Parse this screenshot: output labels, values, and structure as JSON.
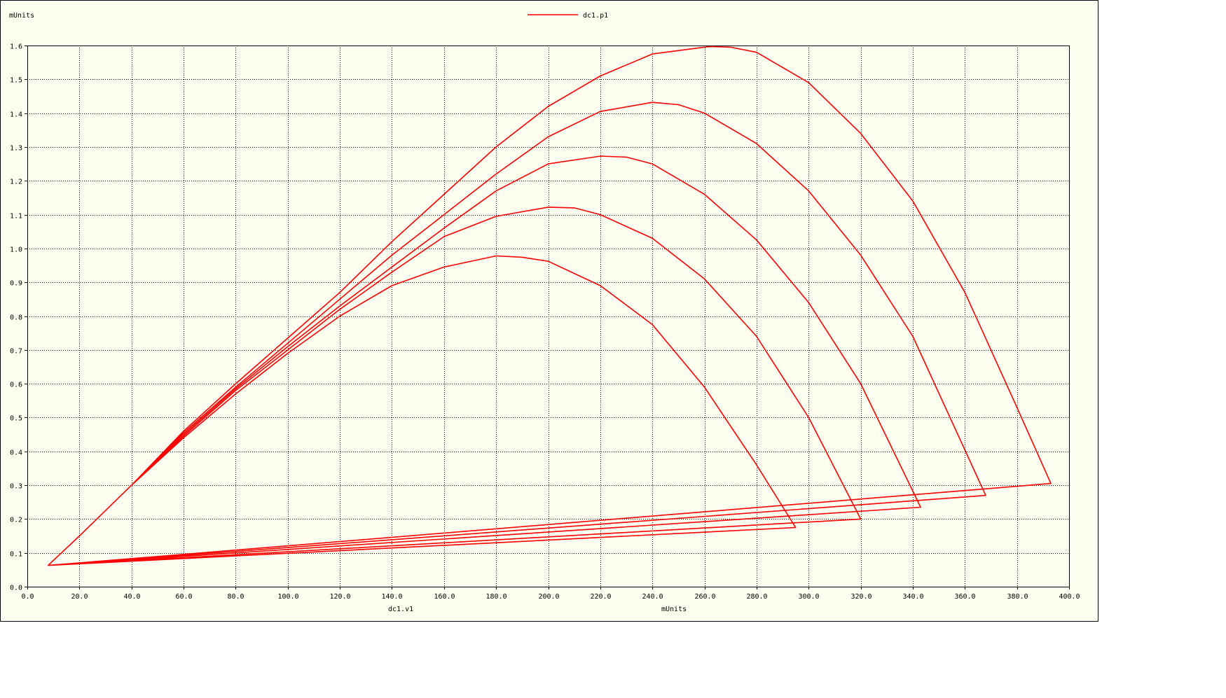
{
  "chart_data": {
    "type": "line",
    "xlabel": "dc1.v1",
    "xunit": "mUnits",
    "ylabel": "mUnits",
    "xlim": [
      0,
      400
    ],
    "ylim": [
      0,
      1.6
    ],
    "x_ticks": [
      "0.0",
      "20.0",
      "40.0",
      "60.0",
      "80.0",
      "100.0",
      "120.0",
      "140.0",
      "160.0",
      "180.0",
      "200.0",
      "220.0",
      "240.0",
      "260.0",
      "280.0",
      "300.0",
      "320.0",
      "340.0",
      "360.0",
      "380.0",
      "400.0"
    ],
    "y_ticks": [
      "0.0",
      "0.1",
      "0.2",
      "0.3",
      "0.4",
      "0.5",
      "0.6",
      "0.7",
      "0.8",
      "0.9",
      "1.0",
      "1.1",
      "1.2",
      "1.3",
      "1.4",
      "1.5",
      "1.6"
    ],
    "grid": true,
    "legend_position": "top-center",
    "series_color": "#ff0000",
    "series": [
      {
        "name": "dc1.p1",
        "x": [
          8,
          20,
          40,
          60,
          80,
          100,
          120,
          140,
          160,
          180,
          190,
          200,
          220,
          240,
          260,
          270,
          280,
          295,
          8,
          20,
          40,
          60,
          80,
          100,
          120,
          140,
          160,
          180,
          200,
          210,
          220,
          240,
          260,
          280,
          300,
          320,
          8,
          20,
          40,
          60,
          80,
          100,
          120,
          140,
          160,
          180,
          200,
          220,
          230,
          240,
          260,
          280,
          300,
          320,
          343,
          8,
          20,
          40,
          60,
          80,
          100,
          120,
          140,
          160,
          180,
          200,
          220,
          240,
          250,
          260,
          280,
          300,
          320,
          340,
          368,
          8,
          20,
          40,
          60,
          80,
          100,
          120,
          140,
          160,
          180,
          200,
          220,
          240,
          262,
          270,
          280,
          300,
          320,
          340,
          360,
          380,
          393,
          8
        ],
        "y": [
          0.063,
          0.15,
          0.3,
          0.44,
          0.57,
          0.69,
          0.8,
          0.89,
          0.945,
          0.978,
          0.974,
          0.962,
          0.89,
          0.775,
          0.59,
          0.475,
          0.36,
          0.175,
          0.063,
          0.15,
          0.3,
          0.445,
          0.58,
          0.7,
          0.82,
          0.93,
          1.035,
          1.095,
          1.122,
          1.12,
          1.1,
          1.03,
          0.91,
          0.74,
          0.5,
          0.2,
          0.063,
          0.15,
          0.3,
          0.45,
          0.585,
          0.71,
          0.83,
          0.945,
          1.06,
          1.17,
          1.25,
          1.273,
          1.27,
          1.25,
          1.16,
          1.025,
          0.84,
          0.6,
          0.235,
          0.063,
          0.15,
          0.3,
          0.455,
          0.59,
          0.72,
          0.85,
          0.98,
          1.1,
          1.22,
          1.33,
          1.405,
          1.432,
          1.425,
          1.4,
          1.31,
          1.17,
          0.98,
          0.74,
          0.27,
          0.063,
          0.15,
          0.3,
          0.46,
          0.6,
          0.735,
          0.87,
          1.02,
          1.16,
          1.3,
          1.42,
          1.51,
          1.575,
          1.597,
          1.595,
          1.58,
          1.49,
          1.34,
          1.14,
          0.87,
          0.53,
          0.305,
          0.063
        ]
      }
    ]
  }
}
